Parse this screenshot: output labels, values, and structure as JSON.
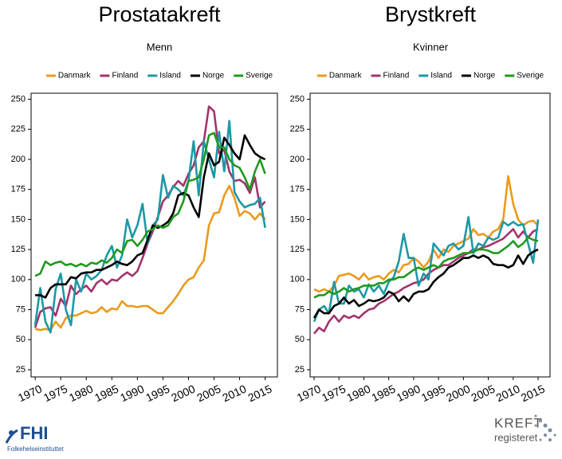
{
  "chart_data": [
    {
      "type": "line",
      "title": "Prostatakreft",
      "subtitle": "Menn",
      "x": [
        1970,
        1971,
        1972,
        1973,
        1974,
        1975,
        1976,
        1977,
        1978,
        1979,
        1980,
        1981,
        1982,
        1983,
        1984,
        1985,
        1986,
        1987,
        1988,
        1989,
        1990,
        1991,
        1992,
        1993,
        1994,
        1995,
        1996,
        1997,
        1998,
        1999,
        2000,
        2001,
        2002,
        2003,
        2004,
        2005,
        2006,
        2007,
        2008,
        2009,
        2010,
        2011,
        2012,
        2013,
        2014,
        2015
      ],
      "xlim": [
        1969.2,
        2017.4
      ],
      "xticks": [
        1970,
        1975,
        1980,
        1985,
        1990,
        1995,
        2000,
        2005,
        2010,
        2015
      ],
      "ylim": [
        19,
        255
      ],
      "yticks": [
        25,
        50,
        75,
        100,
        125,
        150,
        175,
        200,
        225,
        250
      ],
      "grid": false,
      "legend": "top",
      "series": [
        {
          "name": "Danmark",
          "color": "#eb9a1c",
          "values": [
            59,
            58,
            59,
            58,
            65,
            60,
            68,
            70,
            70,
            72,
            74,
            72,
            73,
            77,
            73,
            76,
            75,
            82,
            78,
            78,
            77,
            78,
            78,
            75,
            72,
            72,
            77,
            82,
            88,
            95,
            100,
            102,
            110,
            116,
            145,
            155,
            156,
            170,
            178,
            168,
            153,
            157,
            155,
            150,
            155,
            150
          ]
        },
        {
          "name": "Finland",
          "color": "#a2346b",
          "values": [
            60,
            73,
            76,
            77,
            70,
            84,
            78,
            95,
            88,
            92,
            95,
            90,
            97,
            100,
            96,
            100,
            99,
            103,
            106,
            103,
            107,
            118,
            130,
            140,
            152,
            165,
            170,
            177,
            182,
            178,
            188,
            195,
            210,
            215,
            244,
            240,
            205,
            208,
            190,
            182,
            183,
            180,
            172,
            185,
            160,
            165
          ]
        },
        {
          "name": "Island",
          "color": "#1c98a6",
          "values": [
            62,
            93,
            65,
            56,
            92,
            105,
            75,
            62,
            100,
            90,
            105,
            100,
            103,
            108,
            120,
            128,
            110,
            120,
            150,
            135,
            145,
            163,
            130,
            145,
            150,
            187,
            168,
            178,
            175,
            170,
            182,
            215,
            170,
            215,
            200,
            185,
            223,
            190,
            232,
            173,
            165,
            160,
            162,
            163,
            168,
            143
          ]
        },
        {
          "name": "Norge",
          "color": "#000000",
          "values": [
            87,
            87,
            85,
            93,
            96,
            96,
            96,
            102,
            101,
            105,
            106,
            106,
            108,
            108,
            110,
            112,
            115,
            113,
            112,
            115,
            120,
            122,
            133,
            145,
            143,
            145,
            148,
            155,
            170,
            172,
            170,
            160,
            152,
            185,
            205,
            195,
            198,
            218,
            212,
            205,
            200,
            220,
            212,
            205,
            202,
            200
          ]
        },
        {
          "name": "Sverige",
          "color": "#1f9a1f",
          "values": [
            103,
            105,
            115,
            112,
            114,
            115,
            112,
            113,
            111,
            113,
            111,
            114,
            113,
            116,
            114,
            118,
            125,
            122,
            132,
            133,
            128,
            133,
            140,
            142,
            145,
            143,
            145,
            152,
            155,
            165,
            182,
            183,
            185,
            200,
            220,
            222,
            210,
            210,
            200,
            195,
            193,
            185,
            175,
            190,
            200,
            188
          ]
        }
      ]
    },
    {
      "type": "line",
      "title": "Brystkreft",
      "subtitle": "Kvinner",
      "x": [
        1970,
        1971,
        1972,
        1973,
        1974,
        1975,
        1976,
        1977,
        1978,
        1979,
        1980,
        1981,
        1982,
        1983,
        1984,
        1985,
        1986,
        1987,
        1988,
        1989,
        1990,
        1991,
        1992,
        1993,
        1994,
        1995,
        1996,
        1997,
        1998,
        1999,
        2000,
        2001,
        2002,
        2003,
        2004,
        2005,
        2006,
        2007,
        2008,
        2009,
        2010,
        2011,
        2012,
        2013,
        2014,
        2015
      ],
      "xlim": [
        1969.2,
        2017.4
      ],
      "xticks": [
        1970,
        1975,
        1980,
        1985,
        1990,
        1995,
        2000,
        2005,
        2010,
        2015
      ],
      "ylim": [
        19,
        255
      ],
      "yticks": [
        25,
        50,
        75,
        100,
        125,
        150,
        175,
        200,
        225,
        250
      ],
      "grid": false,
      "legend": "top",
      "series": [
        {
          "name": "Danmark",
          "color": "#eb9a1c",
          "values": [
            92,
            90,
            92,
            90,
            95,
            103,
            104,
            105,
            103,
            100,
            105,
            100,
            102,
            103,
            100,
            105,
            108,
            106,
            112,
            113,
            118,
            115,
            110,
            115,
            125,
            118,
            125,
            123,
            128,
            130,
            132,
            134,
            142,
            137,
            138,
            135,
            140,
            142,
            150,
            186,
            163,
            150,
            145,
            148,
            149,
            145
          ]
        },
        {
          "name": "Finland",
          "color": "#a2346b",
          "values": [
            55,
            60,
            57,
            65,
            70,
            65,
            70,
            68,
            70,
            68,
            72,
            75,
            76,
            80,
            82,
            85,
            88,
            90,
            93,
            95,
            97,
            98,
            100,
            105,
            108,
            110,
            112,
            112,
            115,
            118,
            120,
            122,
            125,
            125,
            127,
            128,
            130,
            132,
            134,
            138,
            142,
            135,
            140,
            135,
            140,
            142
          ]
        },
        {
          "name": "Island",
          "color": "#1c98a6",
          "values": [
            65,
            75,
            78,
            72,
            98,
            80,
            80,
            95,
            90,
            92,
            85,
            96,
            90,
            95,
            88,
            98,
            102,
            115,
            138,
            118,
            118,
            95,
            105,
            100,
            130,
            125,
            120,
            128,
            130,
            125,
            128,
            152,
            122,
            130,
            128,
            135,
            133,
            135,
            148,
            145,
            148,
            145,
            146,
            130,
            114,
            150
          ]
        },
        {
          "name": "Norge",
          "color": "#000000",
          "values": [
            68,
            75,
            72,
            72,
            78,
            80,
            85,
            80,
            83,
            78,
            80,
            83,
            82,
            83,
            85,
            90,
            88,
            82,
            86,
            82,
            88,
            90,
            90,
            92,
            98,
            102,
            105,
            110,
            112,
            115,
            118,
            118,
            120,
            118,
            120,
            118,
            113,
            112,
            112,
            110,
            112,
            120,
            113,
            120,
            123,
            125
          ]
        },
        {
          "name": "Sverige",
          "color": "#1f9a1f",
          "values": [
            85,
            87,
            87,
            90,
            88,
            90,
            93,
            90,
            92,
            93,
            95,
            95,
            95,
            97,
            97,
            100,
            100,
            102,
            102,
            105,
            108,
            110,
            108,
            110,
            112,
            110,
            115,
            117,
            118,
            120,
            122,
            122,
            123,
            125,
            125,
            124,
            122,
            122,
            125,
            128,
            132,
            127,
            130,
            135,
            133,
            132
          ]
        }
      ]
    }
  ],
  "footer": {
    "left_logo": "FHI",
    "left_name": "Folkehelseinstituttet",
    "right_logo_top": "KREFT",
    "right_logo_bottom": "registeret"
  }
}
